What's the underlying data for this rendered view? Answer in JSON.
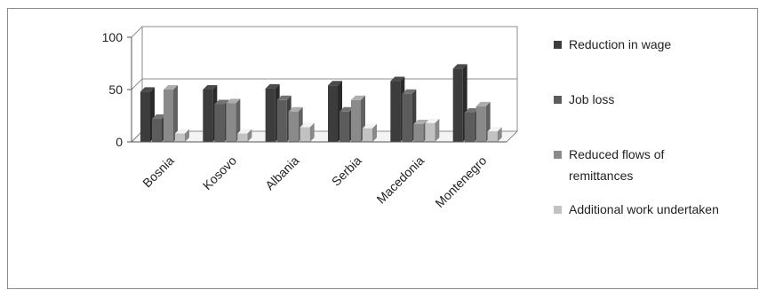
{
  "chart_data": {
    "type": "bar",
    "categories": [
      "Bosnia",
      "Kosovo",
      "Albania",
      "Serbia",
      "Macedonia",
      "Montenegro"
    ],
    "series": [
      {
        "name": "Reduction in wage",
        "values": [
          48,
          50,
          51,
          54,
          58,
          70
        ],
        "color": "#3c3c3c"
      },
      {
        "name": "Job loss",
        "values": [
          22,
          36,
          40,
          29,
          46,
          28
        ],
        "color": "#5c5c5c"
      },
      {
        "name": "Reduced flows of remittances",
        "values": [
          50,
          37,
          29,
          40,
          17,
          34
        ],
        "color": "#8a8a8a"
      },
      {
        "name": "Additional work undertaken",
        "values": [
          8,
          8,
          14,
          13,
          18,
          10
        ],
        "color": "#c2c2c2"
      }
    ],
    "title": "",
    "xlabel": "",
    "ylabel": "",
    "ylim": [
      0,
      100
    ],
    "yticks": [
      "0",
      "50",
      "100"
    ],
    "grid": true,
    "legend": "right",
    "style": "3d-clustered-column"
  }
}
